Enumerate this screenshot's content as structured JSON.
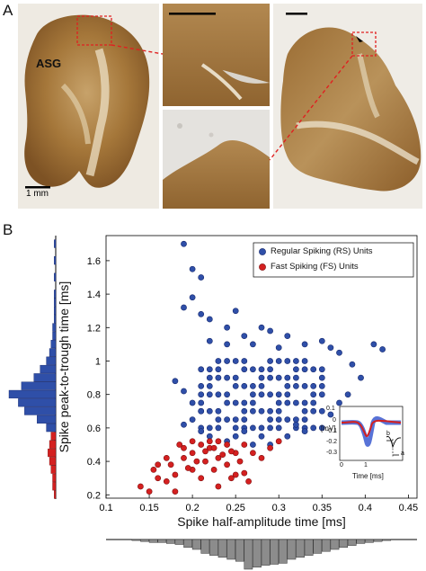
{
  "panel_a": {
    "letter": "A",
    "region_label": "ASG",
    "scale_label": "1 mm"
  },
  "panel_b": {
    "letter": "B"
  },
  "chart_data": {
    "type": "scatter",
    "xlabel": "Spike half-amplitude time [ms]",
    "ylabel": "Spike peak-to-trough time [ms]",
    "xlim": [
      0.1,
      0.46
    ],
    "ylim": [
      0.18,
      1.75
    ],
    "x_ticks": [
      "0.1",
      "0.15",
      "0.2",
      "0.25",
      "0.3",
      "0.35",
      "0.4",
      "0.45"
    ],
    "y_ticks": [
      "0.2",
      "0.4",
      "0.6",
      "0.8",
      "1",
      "1.2",
      "1.4",
      "1.6"
    ],
    "legend_position": "top-right",
    "colors": {
      "rs": "#2f4fa8",
      "fs": "#d42020"
    },
    "series": [
      {
        "name": "Regular Spiking (RS) Units",
        "points": [
          [
            0.19,
            1.7
          ],
          [
            0.2,
            1.55
          ],
          [
            0.21,
            1.5
          ],
          [
            0.2,
            1.38
          ],
          [
            0.19,
            1.32
          ],
          [
            0.21,
            1.28
          ],
          [
            0.22,
            1.25
          ],
          [
            0.25,
            1.3
          ],
          [
            0.28,
            1.2
          ],
          [
            0.24,
            1.2
          ],
          [
            0.26,
            1.15
          ],
          [
            0.29,
            1.18
          ],
          [
            0.31,
            1.15
          ],
          [
            0.33,
            1.1
          ],
          [
            0.35,
            1.12
          ],
          [
            0.22,
            1.12
          ],
          [
            0.24,
            1.1
          ],
          [
            0.27,
            1.1
          ],
          [
            0.3,
            1.08
          ],
          [
            0.36,
            1.08
          ],
          [
            0.37,
            1.05
          ],
          [
            0.41,
            1.1
          ],
          [
            0.42,
            1.07
          ],
          [
            0.385,
            0.98
          ],
          [
            0.395,
            0.9
          ],
          [
            0.18,
            0.88
          ],
          [
            0.19,
            0.82
          ],
          [
            0.2,
            0.75
          ],
          [
            0.21,
            0.7
          ],
          [
            0.2,
            0.65
          ],
          [
            0.19,
            0.62
          ],
          [
            0.21,
            0.58
          ],
          [
            0.22,
            0.55
          ],
          [
            0.23,
            0.6
          ],
          [
            0.24,
            0.52
          ],
          [
            0.25,
            0.55
          ],
          [
            0.26,
            0.58
          ],
          [
            0.27,
            0.5
          ],
          [
            0.28,
            0.55
          ],
          [
            0.29,
            0.5
          ],
          [
            0.3,
            0.6
          ],
          [
            0.31,
            0.55
          ],
          [
            0.32,
            0.62
          ],
          [
            0.33,
            0.58
          ],
          [
            0.36,
            0.68
          ],
          [
            0.37,
            0.75
          ],
          [
            0.38,
            0.8
          ]
        ],
        "grid": {
          "x_from": 0.21,
          "x_to": 0.355,
          "x_step": 0.01,
          "y_from": 0.6,
          "y_to": 1.0,
          "y_step": 0.05
        }
      },
      {
        "name": "Fast Spiking (FS) Units",
        "points": [
          [
            0.14,
            0.25
          ],
          [
            0.15,
            0.22
          ],
          [
            0.16,
            0.3
          ],
          [
            0.155,
            0.35
          ],
          [
            0.17,
            0.28
          ],
          [
            0.18,
            0.32
          ],
          [
            0.175,
            0.38
          ],
          [
            0.19,
            0.42
          ],
          [
            0.2,
            0.35
          ],
          [
            0.21,
            0.3
          ],
          [
            0.2,
            0.45
          ],
          [
            0.215,
            0.4
          ],
          [
            0.22,
            0.48
          ],
          [
            0.225,
            0.35
          ],
          [
            0.23,
            0.42
          ],
          [
            0.24,
            0.38
          ],
          [
            0.245,
            0.3
          ],
          [
            0.25,
            0.45
          ],
          [
            0.255,
            0.4
          ],
          [
            0.26,
            0.33
          ],
          [
            0.265,
            0.28
          ],
          [
            0.23,
            0.25
          ],
          [
            0.19,
            0.48
          ],
          [
            0.2,
            0.52
          ],
          [
            0.21,
            0.5
          ],
          [
            0.22,
            0.52
          ],
          [
            0.17,
            0.42
          ],
          [
            0.18,
            0.22
          ],
          [
            0.23,
            0.52
          ],
          [
            0.24,
            0.5
          ],
          [
            0.26,
            0.5
          ],
          [
            0.27,
            0.45
          ],
          [
            0.29,
            0.48
          ],
          [
            0.3,
            0.52
          ],
          [
            0.16,
            0.38
          ],
          [
            0.185,
            0.5
          ],
          [
            0.235,
            0.44
          ],
          [
            0.25,
            0.32
          ],
          [
            0.195,
            0.36
          ],
          [
            0.205,
            0.4
          ],
          [
            0.215,
            0.46
          ],
          [
            0.225,
            0.48
          ],
          [
            0.245,
            0.46
          ],
          [
            0.28,
            0.42
          ]
        ]
      }
    ],
    "inset": {
      "ylabel": "[mV]",
      "xlabel": "Time [ms]",
      "y_ticks": [
        "0.1",
        "0",
        "-0.1",
        "-0.2",
        "-0.3"
      ],
      "x_ticks": [
        "0",
        "1"
      ],
      "annotation_b": "b",
      "annotation_a": "a"
    },
    "histogram_y": {
      "bins": [
        0.2,
        0.25,
        0.3,
        0.35,
        0.4,
        0.45,
        0.5,
        0.55,
        0.6,
        0.65,
        0.7,
        0.75,
        0.8,
        0.85,
        0.9,
        0.95,
        1.0,
        1.05,
        1.1,
        1.15,
        1.2,
        1.25,
        1.3,
        1.35,
        1.4,
        1.45,
        1.5,
        1.55,
        1.6,
        1.65,
        1.7
      ],
      "counts_fs": [
        1,
        2,
        2,
        3,
        4,
        5,
        4,
        3,
        0,
        0,
        0,
        0,
        0,
        0,
        0,
        0,
        0,
        0,
        0,
        0,
        0,
        0,
        0,
        0,
        0,
        0,
        0,
        0,
        0,
        0,
        0
      ],
      "counts_rs": [
        0,
        0,
        0,
        0,
        0,
        0,
        0,
        1,
        6,
        12,
        20,
        24,
        30,
        22,
        14,
        10,
        6,
        4,
        3,
        2,
        2,
        1,
        1,
        1,
        1,
        0,
        1,
        0,
        1,
        0,
        1
      ]
    },
    "histogram_x": {
      "bins": [
        0.13,
        0.14,
        0.15,
        0.16,
        0.17,
        0.18,
        0.19,
        0.2,
        0.21,
        0.22,
        0.23,
        0.24,
        0.25,
        0.26,
        0.27,
        0.28,
        0.29,
        0.3,
        0.31,
        0.32,
        0.33,
        0.34,
        0.35,
        0.36,
        0.37,
        0.38,
        0.39,
        0.4,
        0.41,
        0.42
      ],
      "counts": [
        1,
        2,
        3,
        3,
        4,
        5,
        8,
        10,
        14,
        16,
        18,
        20,
        22,
        30,
        28,
        26,
        25,
        24,
        20,
        18,
        16,
        14,
        12,
        10,
        8,
        6,
        4,
        3,
        2,
        1
      ]
    }
  }
}
